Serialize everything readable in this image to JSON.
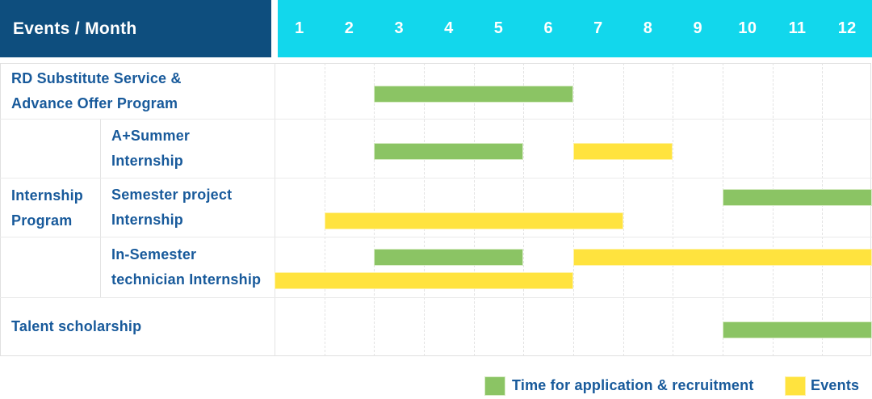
{
  "header": {
    "row_label": "Events / Month",
    "months": [
      "1",
      "2",
      "3",
      "4",
      "5",
      "6",
      "7",
      "8",
      "9",
      "10",
      "11",
      "12"
    ]
  },
  "colors": {
    "header_navy": "#0E4E7E",
    "header_cyan": "#12D7EC",
    "application_green": "#8BC464",
    "event_yellow": "#FFE33E",
    "label_blue": "#185A9B"
  },
  "legend": [
    {
      "kind": "application",
      "label": "Time for application & recruitment",
      "color": "#8BC464"
    },
    {
      "kind": "event",
      "label": "Events",
      "color": "#FFE33E"
    }
  ],
  "chart_data": {
    "type": "bar",
    "subtype": "gantt-timeline",
    "title": "Events / Month",
    "x_ticks": [
      1,
      2,
      3,
      4,
      5,
      6,
      7,
      8,
      9,
      10,
      11,
      12
    ],
    "x_range": [
      1,
      12
    ],
    "legend_position": "bottom-right",
    "grid": "dashed-vertical",
    "group_label": {
      "label": "Internship Program",
      "label_lines": [
        "Internship",
        "Program"
      ]
    },
    "rows": [
      {
        "id": "rd-substitute-service",
        "group": "",
        "label": "RD Substitute Service & Advance Offer Program",
        "label_lines": [
          "RD Substitute Service &",
          "Advance Offer Program"
        ],
        "tracks": 1,
        "bars": [
          {
            "kind": "application",
            "start_month": 3,
            "end_month": 6,
            "track": 0
          }
        ]
      },
      {
        "id": "a-plus-summer-internship",
        "group": "Internship Program",
        "label": "A+Summer Internship",
        "label_lines": [
          "A+Summer",
          "Internship"
        ],
        "tracks": 1,
        "bars": [
          {
            "kind": "application",
            "start_month": 3,
            "end_month": 5,
            "track": 0
          },
          {
            "kind": "event",
            "start_month": 7,
            "end_month": 8,
            "track": 0
          }
        ]
      },
      {
        "id": "semester-project-internship",
        "group": "Internship Program",
        "label": "Semester project Internship",
        "label_lines": [
          "Semester project",
          "Internship"
        ],
        "tracks": 2,
        "bars": [
          {
            "kind": "application",
            "start_month": 10,
            "end_month": 12,
            "track": 0
          },
          {
            "kind": "event",
            "start_month": 2,
            "end_month": 7,
            "track": 1
          }
        ]
      },
      {
        "id": "in-semester-technician-internship",
        "group": "Internship Program",
        "label": "In-Semester technician Internship",
        "label_lines": [
          "In-Semester",
          "technician Internship"
        ],
        "tracks": 2,
        "bars": [
          {
            "kind": "application",
            "start_month": 3,
            "end_month": 5,
            "track": 0
          },
          {
            "kind": "event",
            "start_month": 7,
            "end_month": 12,
            "track": 0
          },
          {
            "kind": "event",
            "start_month": 1,
            "end_month": 6,
            "track": 1
          }
        ]
      },
      {
        "id": "talent-scholarship",
        "group": "",
        "label": "Talent scholarship",
        "label_lines": [
          "Talent scholarship"
        ],
        "tracks": 1,
        "bars": [
          {
            "kind": "application",
            "start_month": 10,
            "end_month": 12,
            "track": 0
          }
        ]
      }
    ]
  }
}
